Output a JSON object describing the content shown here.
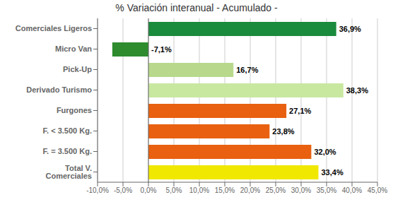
{
  "chart_data": {
    "type": "bar",
    "orientation": "horizontal",
    "title": "% Variación interanual - Acumulado -",
    "categories": [
      "Comerciales Ligeros",
      "Micro Van",
      "Pick-Up",
      "Derivado Turismo",
      "Furgones",
      "F. < 3.500 Kg.",
      "F. = 3.500 Kg.",
      "Total V. Comerciales"
    ],
    "values": [
      36.9,
      -7.1,
      16.7,
      38.3,
      27.1,
      23.8,
      32.0,
      33.4
    ],
    "value_labels": [
      "36,9%",
      "-7,1%",
      "16,7%",
      "38,3%",
      "27,1%",
      "23,8%",
      "32,0%",
      "33,4%"
    ],
    "colors": [
      "#1a8a3c",
      "#2e8b2e",
      "#b8d98c",
      "#c8e8a0",
      "#e86010",
      "#e86010",
      "#e86010",
      "#f0e800"
    ],
    "xlim": [
      -10.0,
      45.0
    ],
    "xticks": [
      {
        "value": -10,
        "label": "-10,0%"
      },
      {
        "value": -5,
        "label": "-5,0%"
      },
      {
        "value": 0,
        "label": "0,0%"
      },
      {
        "value": 5,
        "label": "5,0%"
      },
      {
        "value": 10,
        "label": "10,0%"
      },
      {
        "value": 15,
        "label": "15,0%"
      },
      {
        "value": 20,
        "label": "20,0%"
      },
      {
        "value": 25,
        "label": "25,0%"
      },
      {
        "value": 30,
        "label": "30,0%"
      },
      {
        "value": 35,
        "label": "35,0%"
      },
      {
        "value": 40,
        "label": "40,0%"
      },
      {
        "value": 45,
        "label": "45,0%"
      }
    ],
    "grid": true,
    "data_labels": true
  }
}
